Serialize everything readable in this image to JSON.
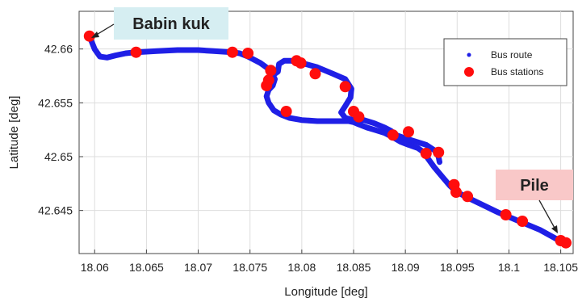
{
  "chart_data": {
    "type": "scatter",
    "xlabel": "Longitude [deg]",
    "ylabel": "Latitude [deg]",
    "xlim": [
      18.0585,
      18.1062
    ],
    "ylim": [
      42.641,
      42.6635
    ],
    "x_ticks": [
      "18.06",
      "18.065",
      "18.07",
      "18.075",
      "18.08",
      "18.085",
      "18.09",
      "18.095",
      "18.1",
      "18.105"
    ],
    "y_ticks": [
      "42.645",
      "42.65",
      "42.655",
      "42.66"
    ],
    "grid": true,
    "legend_position": "top-right",
    "legend": [
      {
        "label": "Bus route",
        "marker": "dot"
      },
      {
        "label": "Bus stations",
        "marker": "large-dot"
      }
    ],
    "colors": {
      "route": "#1f1fe6",
      "stations": "#ff0d0d",
      "babin_kuk_box": "#d6eef2",
      "pile_box": "#f9c8c8"
    },
    "annotations": [
      {
        "text": "Babin kuk",
        "x": 18.0595,
        "y": 42.6612
      },
      {
        "text": "Pile",
        "x": 18.1053,
        "y": 42.642
      }
    ],
    "series": [
      {
        "name": "Bus route",
        "x": [
          18.0595,
          18.06,
          18.0605,
          18.0612,
          18.062,
          18.063,
          18.064,
          18.066,
          18.068,
          18.07,
          18.0715,
          18.0733,
          18.074,
          18.0748,
          18.076,
          18.077,
          18.0774,
          18.0772,
          18.0768,
          18.0766,
          18.0768,
          18.0773,
          18.078,
          18.0788,
          18.08,
          18.0815,
          18.083,
          18.0845,
          18.085,
          18.0855,
          18.0863,
          18.087,
          18.088,
          18.0888,
          18.0895,
          18.0903,
          18.0912,
          18.0918,
          18.0922,
          18.0928,
          18.0935,
          18.0943,
          18.095,
          18.096,
          18.0975,
          18.099,
          18.1,
          18.1015,
          18.103,
          18.1045,
          18.1055
        ],
        "y": [
          42.6612,
          42.66,
          42.6593,
          42.6592,
          42.6594,
          42.6596,
          42.6597,
          42.6598,
          42.6599,
          42.6599,
          42.6598,
          42.6597,
          42.6596,
          42.6593,
          42.6587,
          42.658,
          42.6572,
          42.6566,
          42.6562,
          42.6556,
          42.655,
          42.6543,
          42.6539,
          42.6536,
          42.6534,
          42.6533,
          42.6533,
          42.6533,
          42.6532,
          42.653,
          42.6527,
          42.6525,
          42.6522,
          42.6518,
          42.6514,
          42.6511,
          42.6508,
          42.6504,
          42.6498,
          42.649,
          42.6482,
          42.6473,
          42.6467,
          42.6462,
          42.6455,
          42.6448,
          42.6444,
          42.6438,
          42.6432,
          42.6424,
          42.6419
        ]
      },
      {
        "name": "Bus route",
        "x": [
          18.0771,
          18.0777,
          18.0778,
          18.0783,
          18.079,
          18.08,
          18.0815,
          18.083,
          18.0842,
          18.0848,
          18.0847,
          18.0842,
          18.0838,
          18.0842,
          18.085,
          18.086,
          18.087,
          18.088,
          18.0886,
          18.0891,
          18.09,
          18.091,
          18.092,
          18.0928,
          18.0932,
          18.0933
        ],
        "y": [
          42.6575,
          42.6579,
          42.6586,
          42.6589,
          42.6589,
          42.6587,
          42.6583,
          42.6577,
          42.6572,
          42.6563,
          42.6555,
          42.6547,
          42.6541,
          42.6536,
          42.6534,
          42.6534,
          42.6531,
          42.6527,
          42.6524,
          42.652,
          42.6517,
          42.6514,
          42.6511,
          42.6506,
          42.65,
          42.6495
        ]
      },
      {
        "name": "Bus stations",
        "x": [
          18.0595,
          18.064,
          18.0733,
          18.0748,
          18.077,
          18.0768,
          18.0766,
          18.0785,
          18.0795,
          18.0799,
          18.0813,
          18.0842,
          18.085,
          18.0855,
          18.0888,
          18.0903,
          18.092,
          18.0932,
          18.0947,
          18.0949,
          18.096,
          18.0997,
          18.1013,
          18.105,
          18.1055
        ],
        "y": [
          42.6612,
          42.6597,
          42.6597,
          42.6596,
          42.658,
          42.6571,
          42.6566,
          42.6542,
          42.6589,
          42.6587,
          42.6577,
          42.6565,
          42.6542,
          42.6537,
          42.652,
          42.6523,
          42.6503,
          42.6504,
          42.6474,
          42.6467,
          42.6463,
          42.6446,
          42.644,
          42.6422,
          42.642
        ]
      }
    ]
  }
}
